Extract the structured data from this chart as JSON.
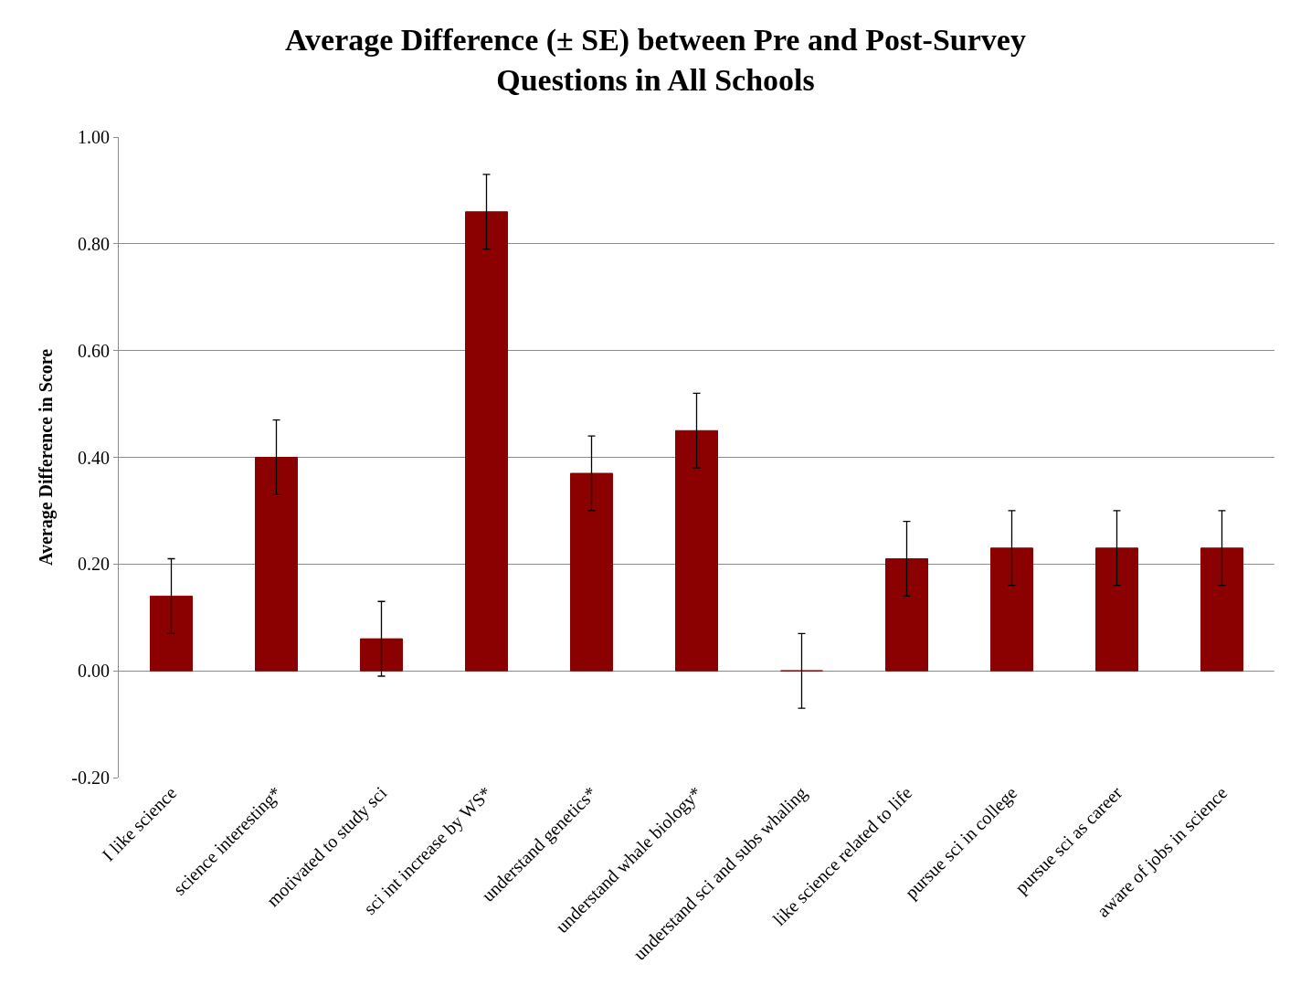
{
  "chart_data": {
    "type": "bar",
    "title": "Average Difference (± SE) between Pre and Post-Survey Questions in All Schools",
    "ylabel": "Average Difference in Score",
    "categories": [
      "I like science",
      "science interesting*",
      "motivated to study sci",
      "sci int increase by WS*",
      "understand genetics*",
      "understand whale biology*",
      "understand sci and subs whaling",
      "like science related to life",
      "pursue sci in college",
      "pursue sci as career",
      "aware of jobs in science"
    ],
    "values": [
      0.14,
      0.4,
      0.06,
      0.86,
      0.37,
      0.45,
      0.0,
      0.21,
      0.23,
      0.23,
      0.23
    ],
    "errors": [
      0.07,
      0.07,
      0.07,
      0.07,
      0.07,
      0.07,
      0.07,
      0.07,
      0.07,
      0.07,
      0.07
    ],
    "color": "#8b0000",
    "ylim": [
      -0.2,
      1.0
    ],
    "yticks": [
      {
        "value": -0.2,
        "label": "-0.20"
      },
      {
        "value": 0,
        "label": "0.00"
      },
      {
        "value": 0.2,
        "label": "0.20"
      },
      {
        "value": 0.4,
        "label": "0.40"
      },
      {
        "value": 0.6,
        "label": "0.60"
      },
      {
        "value": 0.8,
        "label": "0.80"
      },
      {
        "value": 1.0,
        "label": "1.00"
      }
    ],
    "grid": "y",
    "legend": false
  }
}
